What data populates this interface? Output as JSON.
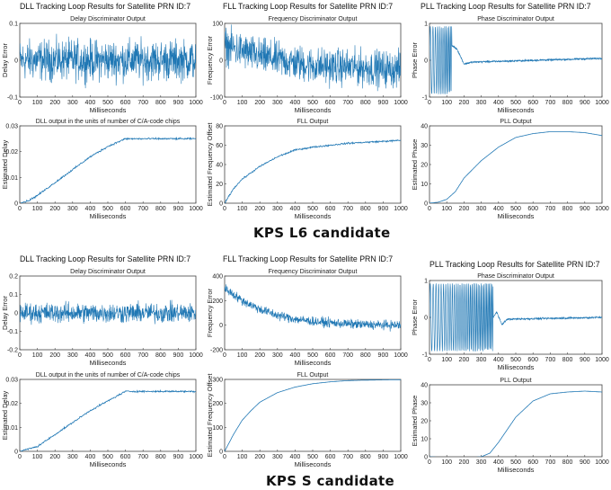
{
  "groups": [
    {
      "caption": "KPS L6 candidate",
      "titles": [
        "DLL Tracking Loop Results for Satellite PRN ID:7",
        "FLL Tracking Loop Results for Satellite PRN ID:7",
        "PLL Tracking Loop Results for Satellite PRN ID:7"
      ]
    },
    {
      "caption": "KPS S candidate",
      "titles": [
        "DLL Tracking Loop Results for Satellite PRN ID:7",
        "FLL Tracking Loop Results for Satellite PRN ID:7",
        "PLL Tracking Loop Results for Satellite PRN ID:7"
      ]
    }
  ],
  "chart_data": [
    {
      "id": "l6_dll_disc",
      "type": "line",
      "title": "Delay Discriminator Output",
      "xlabel": "Milliseconds",
      "ylabel": "Delay Error",
      "xlim": [
        0,
        1000
      ],
      "ylim": [
        -0.1,
        0.1
      ],
      "xticks": [
        0,
        100,
        200,
        300,
        400,
        500,
        600,
        700,
        800,
        900,
        1000
      ],
      "yticks": [
        -0.1,
        0,
        0.1
      ],
      "series": [
        {
          "model": "noise",
          "center": [
            [
              0,
              0
            ],
            [
              1000,
              0
            ]
          ],
          "amp": 0.05
        }
      ]
    },
    {
      "id": "l6_fll_disc",
      "type": "line",
      "title": "Frequency Discriminator Output",
      "xlabel": "Milliseconds",
      "ylabel": "Frequency Error",
      "xlim": [
        0,
        1000
      ],
      "ylim": [
        -100,
        100
      ],
      "xticks": [
        0,
        100,
        200,
        300,
        400,
        500,
        600,
        700,
        800,
        900,
        1000
      ],
      "yticks": [
        -100,
        0,
        100
      ],
      "series": [
        {
          "model": "noise",
          "center": [
            [
              0,
              40
            ],
            [
              200,
              10
            ],
            [
              500,
              -15
            ],
            [
              1000,
              -25
            ]
          ],
          "amp": 45
        }
      ]
    },
    {
      "id": "l6_pll_disc",
      "type": "line",
      "title": "Phase Discriminator Output",
      "xlabel": "Milliseconds",
      "ylabel": "Phase Error",
      "xlim": [
        0,
        1000
      ],
      "ylim": [
        -1,
        1
      ],
      "xticks": [
        0,
        100,
        200,
        300,
        400,
        500,
        600,
        700,
        800,
        900,
        1000
      ],
      "yticks": [
        -1,
        0,
        1
      ],
      "series": [
        {
          "model": "oscill",
          "osc_end": 130,
          "center": [
            [
              0,
              0.1
            ],
            [
              130,
              0.4
            ],
            [
              160,
              0.3
            ],
            [
              200,
              -0.1
            ],
            [
              250,
              -0.05
            ],
            [
              1000,
              0.05
            ]
          ],
          "amp": 0.04
        }
      ]
    },
    {
      "id": "l6_dll_out",
      "type": "line",
      "title": "DLL output in the units of number of C/A-code chips",
      "xlabel": "Milliseconds",
      "ylabel": "Estimated Delay",
      "xlim": [
        0,
        1000
      ],
      "ylim": [
        0,
        0.03
      ],
      "xticks": [
        0,
        100,
        200,
        300,
        400,
        500,
        600,
        700,
        800,
        900,
        1000
      ],
      "yticks": [
        0,
        0.01,
        0.02,
        0.03
      ],
      "series": [
        {
          "model": "line",
          "points": [
            [
              0,
              0
            ],
            [
              50,
              0.001
            ],
            [
              100,
              0.003
            ],
            [
              200,
              0.008
            ],
            [
              300,
              0.013
            ],
            [
              400,
              0.018
            ],
            [
              500,
              0.022
            ],
            [
              600,
              0.025
            ],
            [
              700,
              0.025
            ],
            [
              800,
              0.025
            ],
            [
              900,
              0.025
            ],
            [
              1000,
              0.025
            ]
          ],
          "jitter": 0.0005
        }
      ]
    },
    {
      "id": "l6_fll_out",
      "type": "line",
      "title": "FLL Output",
      "xlabel": "Milliseconds",
      "ylabel": "Estimated Frequency Offset",
      "xlim": [
        0,
        1000
      ],
      "ylim": [
        0,
        80
      ],
      "xticks": [
        0,
        100,
        200,
        300,
        400,
        500,
        600,
        700,
        800,
        900,
        1000
      ],
      "yticks": [
        0,
        20,
        40,
        60,
        80
      ],
      "series": [
        {
          "model": "line",
          "points": [
            [
              0,
              0
            ],
            [
              50,
              15
            ],
            [
              100,
              25
            ],
            [
              200,
              38
            ],
            [
              300,
              48
            ],
            [
              400,
              55
            ],
            [
              500,
              58
            ],
            [
              600,
              60
            ],
            [
              700,
              62
            ],
            [
              800,
              63
            ],
            [
              900,
              64
            ],
            [
              1000,
              65
            ]
          ],
          "jitter": 1.2
        }
      ]
    },
    {
      "id": "l6_pll_out",
      "type": "line",
      "title": "PLL Output",
      "xlabel": "Milliseconds",
      "ylabel": "Estimated Phase",
      "xlim": [
        0,
        1000
      ],
      "ylim": [
        0,
        40
      ],
      "xticks": [
        0,
        100,
        200,
        300,
        400,
        500,
        600,
        700,
        800,
        900,
        1000
      ],
      "yticks": [
        0,
        10,
        20,
        30,
        40
      ],
      "series": [
        {
          "model": "line",
          "points": [
            [
              0,
              0
            ],
            [
              50,
              0.5
            ],
            [
              100,
              2
            ],
            [
              150,
              6
            ],
            [
              200,
              13
            ],
            [
              300,
              22
            ],
            [
              400,
              29
            ],
            [
              500,
              34
            ],
            [
              600,
              36
            ],
            [
              700,
              37
            ],
            [
              800,
              37
            ],
            [
              900,
              36.5
            ],
            [
              1000,
              35
            ]
          ],
          "jitter": 0
        }
      ]
    },
    {
      "id": "s_dll_disc",
      "type": "line",
      "title": "Delay Discriminator Output",
      "xlabel": "Milliseconds",
      "ylabel": "Delay Error",
      "xlim": [
        0,
        1000
      ],
      "ylim": [
        -0.2,
        0.2
      ],
      "xticks": [
        0,
        100,
        200,
        300,
        400,
        500,
        600,
        700,
        800,
        900,
        1000
      ],
      "yticks": [
        -0.2,
        -0.1,
        0,
        0.1,
        0.2
      ],
      "series": [
        {
          "model": "noise",
          "center": [
            [
              0,
              0
            ],
            [
              1000,
              0
            ]
          ],
          "amp": 0.05
        }
      ]
    },
    {
      "id": "s_fll_disc",
      "type": "line",
      "title": "Frequency Discriminator Output",
      "xlabel": "Milliseconds",
      "ylabel": "Frequency Error",
      "xlim": [
        0,
        1000
      ],
      "ylim": [
        -200,
        400
      ],
      "xticks": [
        0,
        100,
        200,
        300,
        400,
        500,
        600,
        700,
        800,
        900,
        1000
      ],
      "yticks": [
        -200,
        0,
        200,
        400
      ],
      "series": [
        {
          "model": "noise",
          "center": [
            [
              0,
              300
            ],
            [
              50,
              250
            ],
            [
              100,
              200
            ],
            [
              200,
              130
            ],
            [
              300,
              80
            ],
            [
              400,
              50
            ],
            [
              500,
              30
            ],
            [
              600,
              20
            ],
            [
              700,
              10
            ],
            [
              800,
              5
            ],
            [
              900,
              0
            ],
            [
              1000,
              0
            ]
          ],
          "amp": 35
        }
      ]
    },
    {
      "id": "s_pll_disc",
      "type": "line",
      "title": "Phase Discriminator Output",
      "xlabel": "Milliseconds",
      "ylabel": "Phase Error",
      "xlim": [
        0,
        1000
      ],
      "ylim": [
        -1,
        1
      ],
      "xticks": [
        0,
        100,
        200,
        300,
        400,
        500,
        600,
        700,
        800,
        900,
        1000
      ],
      "yticks": [
        -1,
        0,
        1
      ],
      "series": [
        {
          "model": "oscill",
          "osc_end": 370,
          "center": [
            [
              0,
              0
            ],
            [
              370,
              0
            ],
            [
              390,
              0.15
            ],
            [
              420,
              -0.2
            ],
            [
              450,
              -0.05
            ],
            [
              1000,
              0
            ]
          ],
          "amp": 0.04
        }
      ]
    },
    {
      "id": "s_dll_out",
      "type": "line",
      "title": "DLL output in the units of number of C/A-code chips",
      "xlabel": "Milliseconds",
      "ylabel": "Estimated Delay",
      "xlim": [
        0,
        1000
      ],
      "ylim": [
        0,
        0.03
      ],
      "xticks": [
        0,
        100,
        200,
        300,
        400,
        500,
        600,
        700,
        800,
        900,
        1000
      ],
      "yticks": [
        0,
        0.01,
        0.02,
        0.03
      ],
      "series": [
        {
          "model": "line",
          "points": [
            [
              0,
              0
            ],
            [
              50,
              0.001
            ],
            [
              100,
              0.002
            ],
            [
              200,
              0.007
            ],
            [
              300,
              0.012
            ],
            [
              400,
              0.017
            ],
            [
              500,
              0.021
            ],
            [
              600,
              0.025
            ],
            [
              700,
              0.025
            ],
            [
              800,
              0.025
            ],
            [
              900,
              0.025
            ],
            [
              1000,
              0.025
            ]
          ],
          "jitter": 0.0005
        }
      ]
    },
    {
      "id": "s_fll_out",
      "type": "line",
      "title": "FLL Output",
      "xlabel": "Milliseconds",
      "ylabel": "Estimated Frequency Offset",
      "xlim": [
        0,
        1000
      ],
      "ylim": [
        0,
        300
      ],
      "xticks": [
        0,
        100,
        200,
        300,
        400,
        500,
        600,
        700,
        800,
        900,
        1000
      ],
      "yticks": [
        0,
        100,
        200,
        300
      ],
      "series": [
        {
          "model": "line",
          "points": [
            [
              0,
              0
            ],
            [
              50,
              70
            ],
            [
              100,
              130
            ],
            [
              150,
              170
            ],
            [
              200,
              205
            ],
            [
              300,
              245
            ],
            [
              400,
              268
            ],
            [
              500,
              282
            ],
            [
              600,
              290
            ],
            [
              700,
              295
            ],
            [
              800,
              297
            ],
            [
              900,
              298
            ],
            [
              1000,
              299
            ]
          ],
          "jitter": 0
        }
      ]
    },
    {
      "id": "s_pll_out",
      "type": "line",
      "title": "PLL Output",
      "xlabel": "Milliseconds",
      "ylabel": "Estimated Phase",
      "xlim": [
        0,
        1000
      ],
      "ylim": [
        0,
        40
      ],
      "xticks": [
        0,
        100,
        200,
        300,
        400,
        500,
        600,
        700,
        800,
        900,
        1000
      ],
      "yticks": [
        0,
        10,
        20,
        30,
        40
      ],
      "series": [
        {
          "model": "line",
          "points": [
            [
              0,
              0
            ],
            [
              100,
              -0.5
            ],
            [
              200,
              -0.7
            ],
            [
              300,
              0
            ],
            [
              350,
              2
            ],
            [
              400,
              8
            ],
            [
              450,
              15
            ],
            [
              500,
              22
            ],
            [
              600,
              31
            ],
            [
              700,
              35
            ],
            [
              800,
              36
            ],
            [
              900,
              36.5
            ],
            [
              1000,
              36
            ]
          ],
          "jitter": 0
        }
      ]
    }
  ]
}
